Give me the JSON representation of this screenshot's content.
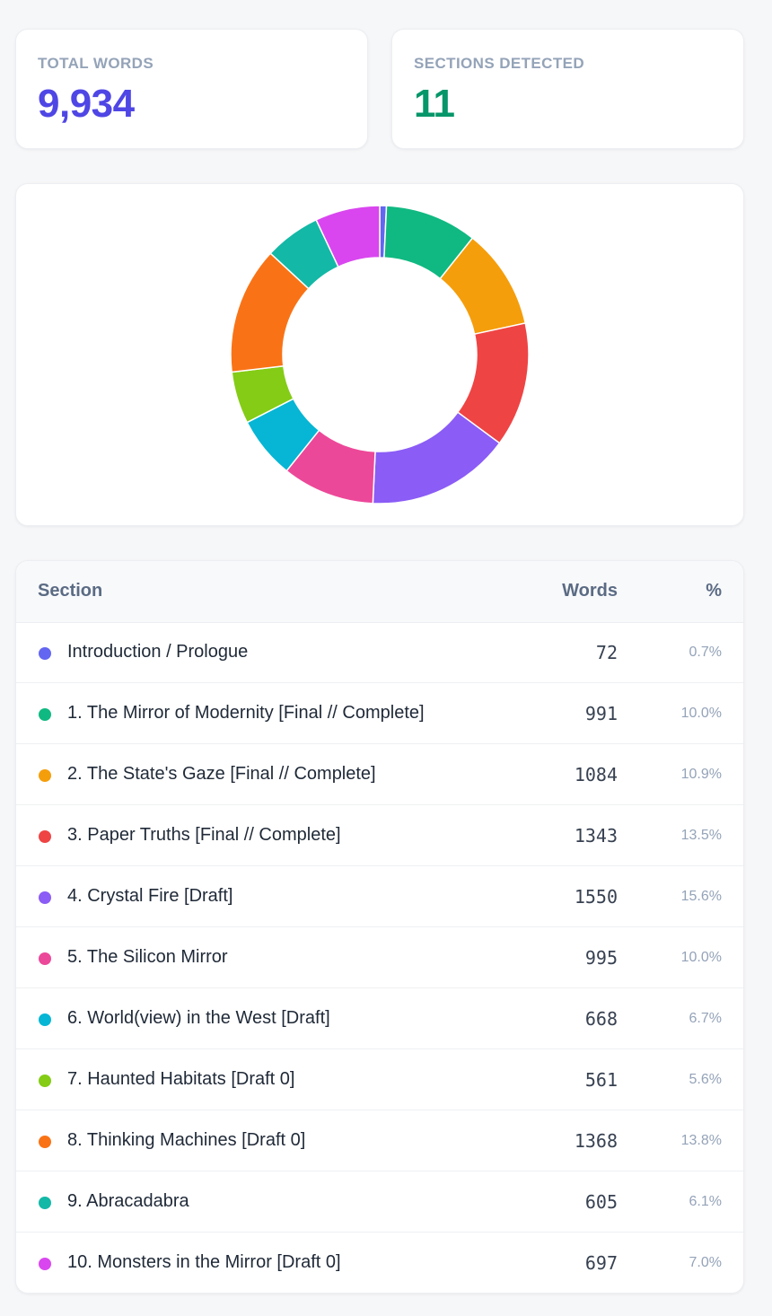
{
  "stats": {
    "total_words": {
      "label": "TOTAL WORDS",
      "value": "9,934",
      "color": "#4f46e5"
    },
    "sections_detected": {
      "label": "SECTIONS DETECTED",
      "value": "11",
      "color": "#059669"
    }
  },
  "chart_data": {
    "type": "pie",
    "variant": "donut",
    "title": "",
    "categories": [
      "Introduction / Prologue",
      "1. The Mirror of Modernity [Final // Complete]",
      "2. The State's Gaze [Final // Complete]",
      "3. Paper Truths [Final // Complete]",
      "4. Crystal Fire [Draft]",
      "5. The Silicon Mirror",
      "6. World(view) in the West [Draft]",
      "7. Haunted Habitats [Draft 0]",
      "8. Thinking Machines [Draft 0]",
      "9. Abracadabra",
      "10. Monsters in the Mirror [Draft 0]"
    ],
    "values": [
      72,
      991,
      1084,
      1343,
      1550,
      995,
      668,
      561,
      1368,
      605,
      697
    ],
    "colors": [
      "#6366f1",
      "#10b981",
      "#f59e0b",
      "#ef4444",
      "#8b5cf6",
      "#ec4899",
      "#06b6d4",
      "#84cc16",
      "#f97316",
      "#14b8a6",
      "#d946ef"
    ],
    "legend": "none"
  },
  "table": {
    "headers": {
      "section": "Section",
      "words": "Words",
      "percent": "%"
    },
    "rows": [
      {
        "name": "Introduction / Prologue",
        "words": "72",
        "percent": "0.7%",
        "color": "#6366f1"
      },
      {
        "name": "1. The Mirror of Modernity [Final // Complete]",
        "words": "991",
        "percent": "10.0%",
        "color": "#10b981"
      },
      {
        "name": "2. The State's Gaze [Final // Complete]",
        "words": "1084",
        "percent": "10.9%",
        "color": "#f59e0b"
      },
      {
        "name": "3. Paper Truths [Final // Complete]",
        "words": "1343",
        "percent": "13.5%",
        "color": "#ef4444"
      },
      {
        "name": "4. Crystal Fire [Draft]",
        "words": "1550",
        "percent": "15.6%",
        "color": "#8b5cf6"
      },
      {
        "name": "5. The Silicon Mirror",
        "words": "995",
        "percent": "10.0%",
        "color": "#ec4899"
      },
      {
        "name": "6. World(view) in the West [Draft]",
        "words": "668",
        "percent": "6.7%",
        "color": "#06b6d4"
      },
      {
        "name": "7. Haunted Habitats [Draft 0]",
        "words": "561",
        "percent": "5.6%",
        "color": "#84cc16"
      },
      {
        "name": "8. Thinking Machines [Draft 0]",
        "words": "1368",
        "percent": "13.8%",
        "color": "#f97316"
      },
      {
        "name": "9. Abracadabra",
        "words": "605",
        "percent": "6.1%",
        "color": "#14b8a6"
      },
      {
        "name": "10. Monsters in the Mirror [Draft 0]",
        "words": "697",
        "percent": "7.0%",
        "color": "#d946ef"
      }
    ]
  }
}
